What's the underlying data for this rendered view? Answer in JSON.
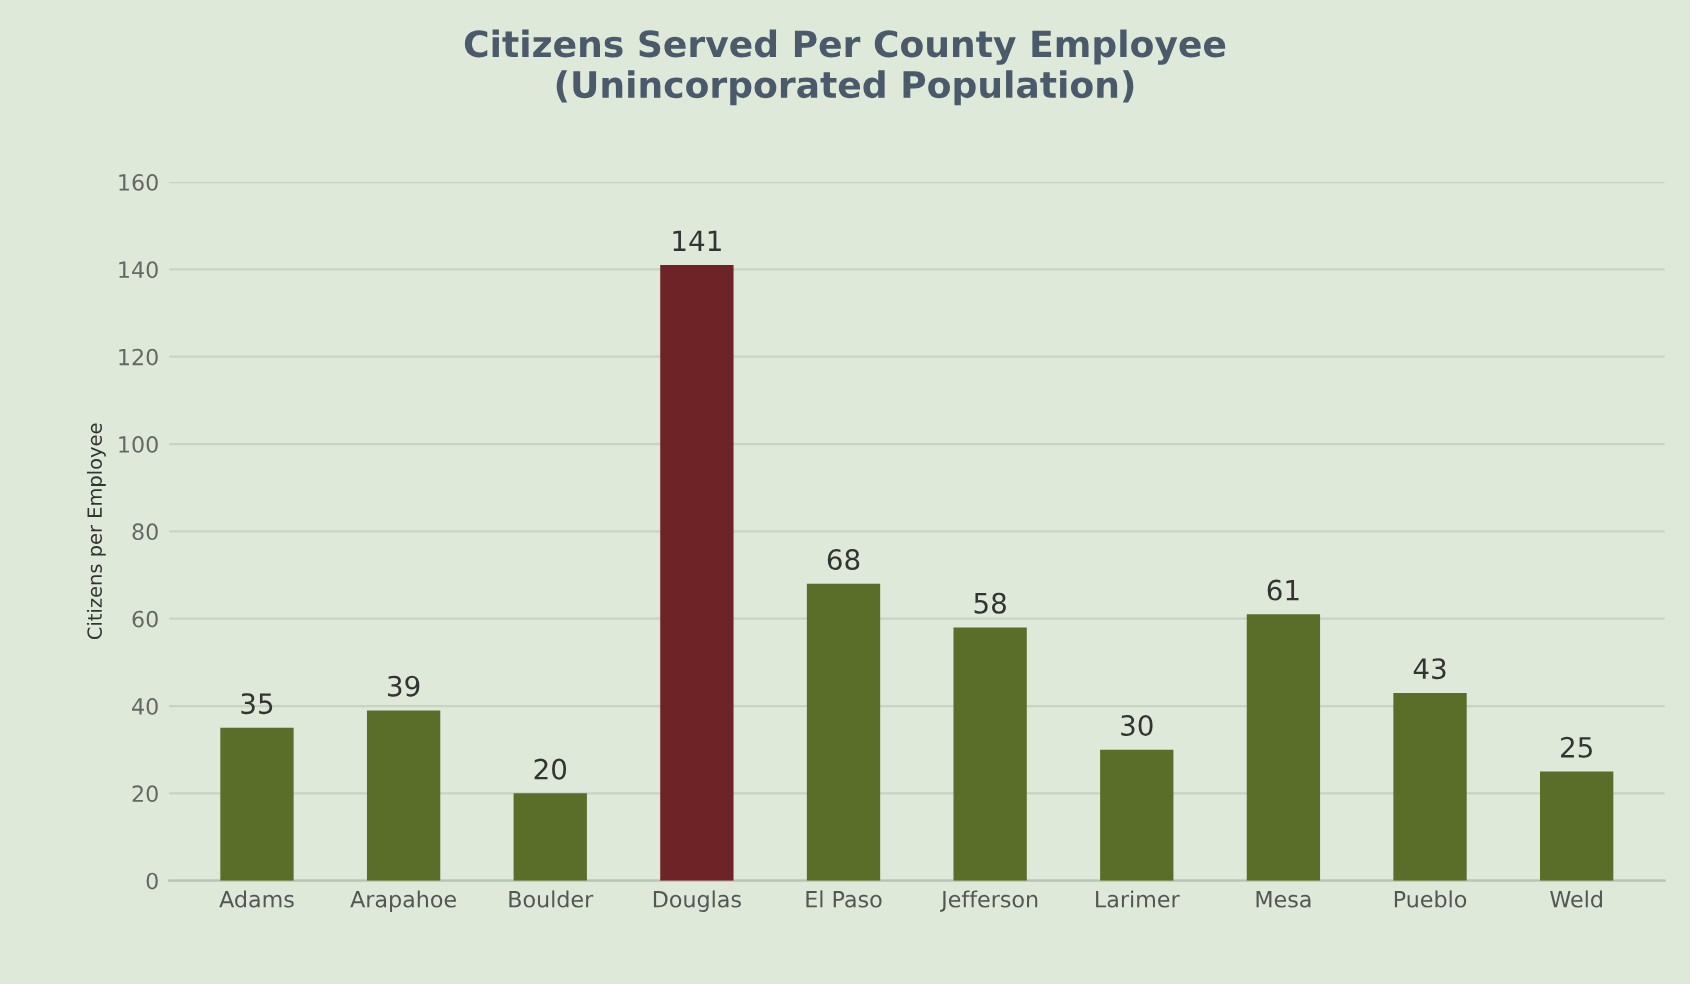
{
  "chart_data": {
    "type": "bar",
    "title": "Citizens Served Per County Employee\n(Unincorporated Population)",
    "ylabel": "Citizens per Employee",
    "categories": [
      "Adams",
      "Arapahoe",
      "Boulder",
      "Douglas",
      "El Paso",
      "Jefferson",
      "Larimer",
      "Mesa",
      "Pueblo",
      "Weld"
    ],
    "values": [
      35,
      39,
      20,
      141,
      68,
      58,
      30,
      61,
      43,
      25
    ],
    "colors": [
      "#5a6e2a",
      "#5a6e2a",
      "#5a6e2a",
      "#6e2327",
      "#5a6e2a",
      "#5a6e2a",
      "#5a6e2a",
      "#5a6e2a",
      "#5a6e2a",
      "#5a6e2a"
    ],
    "ylim": [
      0,
      160
    ],
    "yticks": [
      0,
      20,
      40,
      60,
      80,
      100,
      120,
      140,
      160
    ],
    "grid": "y",
    "data_labels": true
  }
}
